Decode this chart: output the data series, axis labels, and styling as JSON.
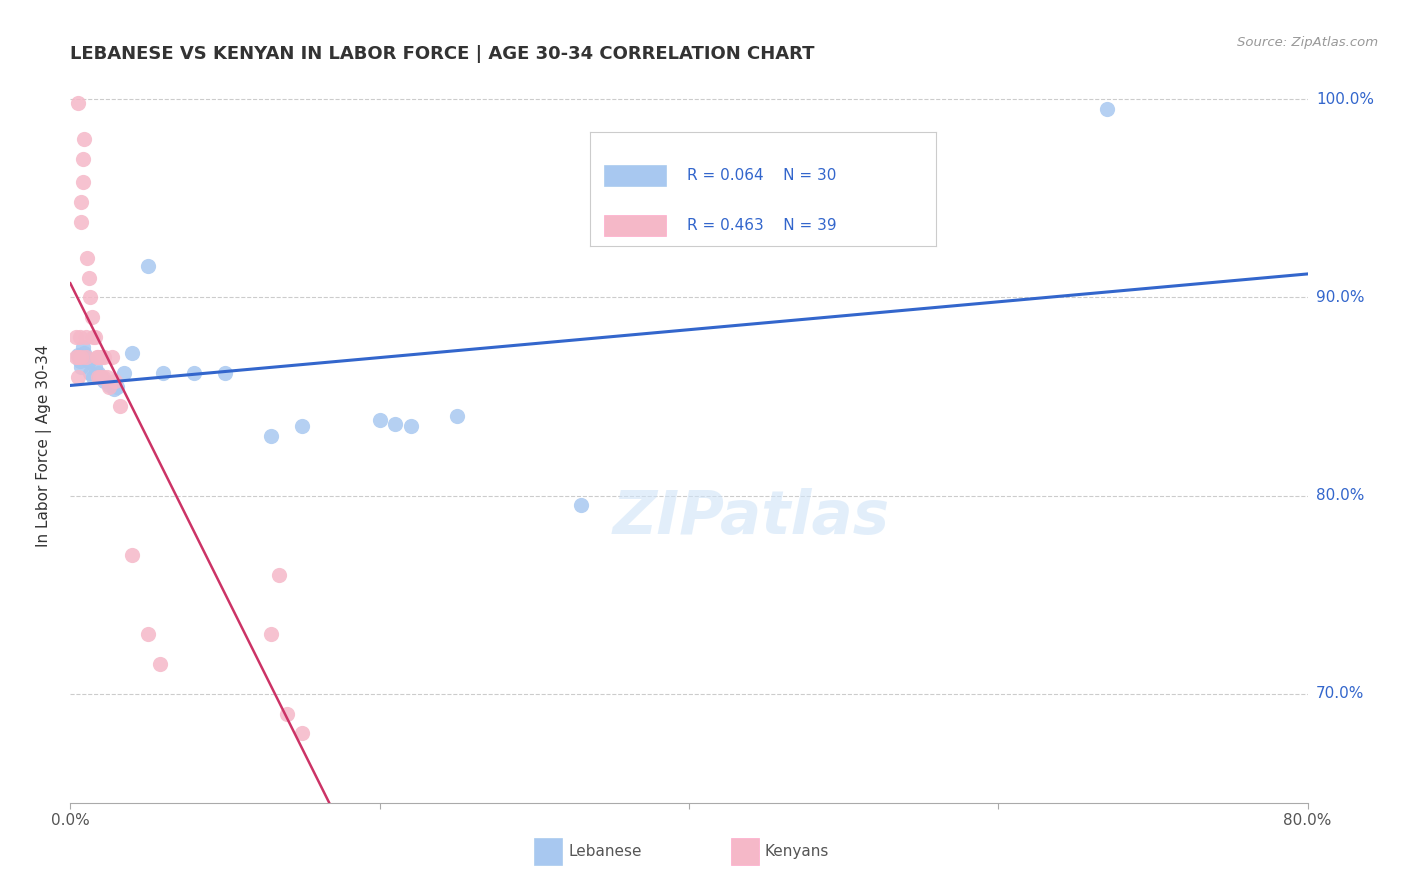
{
  "title": "LEBANESE VS KENYAN IN LABOR FORCE | AGE 30-34 CORRELATION CHART",
  "source": "Source: ZipAtlas.com",
  "ylabel": "In Labor Force | Age 30-34",
  "xlim": [
    0.0,
    0.8
  ],
  "ylim": [
    0.645,
    1.005
  ],
  "yticks": [
    0.7,
    0.8,
    0.9,
    1.0
  ],
  "ytick_labels": [
    "70.0%",
    "80.0%",
    "90.0%",
    "100.0%"
  ],
  "legend_r_blue": "R = 0.064",
  "legend_n_blue": "N = 30",
  "legend_r_pink": "R = 0.463",
  "legend_n_pink": "N = 39",
  "blue_color": "#A8C8F0",
  "pink_color": "#F5B8C8",
  "blue_line_color": "#3366CC",
  "pink_line_color": "#CC3366",
  "lebanese_x": [
    0.005,
    0.006,
    0.007,
    0.008,
    0.009,
    0.01,
    0.012,
    0.013,
    0.015,
    0.016,
    0.018,
    0.02,
    0.022,
    0.025,
    0.028,
    0.03,
    0.035,
    0.04,
    0.05,
    0.06,
    0.08,
    0.1,
    0.13,
    0.15,
    0.2,
    0.21,
    0.22,
    0.25,
    0.33,
    0.67
  ],
  "lebanese_y": [
    0.871,
    0.868,
    0.865,
    0.875,
    0.872,
    0.87,
    0.868,
    0.862,
    0.86,
    0.865,
    0.862,
    0.86,
    0.858,
    0.856,
    0.854,
    0.855,
    0.862,
    0.872,
    0.916,
    0.862,
    0.862,
    0.862,
    0.83,
    0.835,
    0.838,
    0.836,
    0.835,
    0.84,
    0.795,
    0.995
  ],
  "kenyan_x": [
    0.004,
    0.004,
    0.005,
    0.005,
    0.005,
    0.006,
    0.007,
    0.007,
    0.007,
    0.008,
    0.008,
    0.009,
    0.01,
    0.01,
    0.011,
    0.012,
    0.013,
    0.014,
    0.015,
    0.016,
    0.017,
    0.018,
    0.018,
    0.019,
    0.02,
    0.021,
    0.022,
    0.024,
    0.025,
    0.027,
    0.029,
    0.032,
    0.04,
    0.05,
    0.058,
    0.13,
    0.135,
    0.14,
    0.15
  ],
  "kenyan_y": [
    0.87,
    0.88,
    0.86,
    0.87,
    0.998,
    0.88,
    0.948,
    0.938,
    0.87,
    0.958,
    0.97,
    0.98,
    0.88,
    0.87,
    0.92,
    0.91,
    0.9,
    0.89,
    0.88,
    0.88,
    0.87,
    0.87,
    0.86,
    0.86,
    0.87,
    0.86,
    0.87,
    0.86,
    0.855,
    0.87,
    0.858,
    0.845,
    0.77,
    0.73,
    0.715,
    0.73,
    0.76,
    0.69,
    0.68
  ]
}
